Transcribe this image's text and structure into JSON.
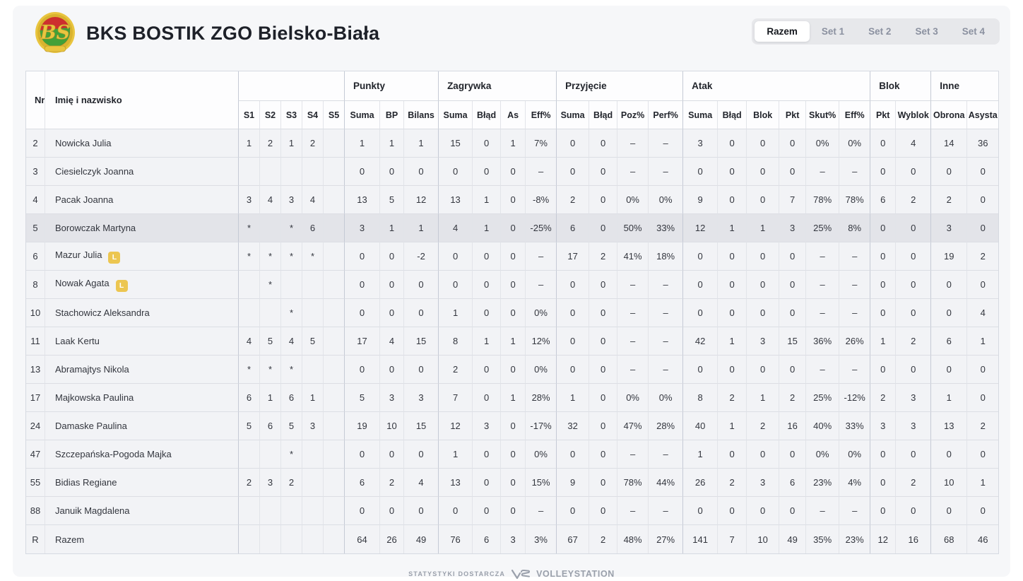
{
  "header": {
    "team_name": "BKS BOSTIK ZGO Bielsko-Biała"
  },
  "tabs": [
    {
      "label": "Razem",
      "active": true
    },
    {
      "label": "Set 1",
      "active": false
    },
    {
      "label": "Set 2",
      "active": false
    },
    {
      "label": "Set 3",
      "active": false
    },
    {
      "label": "Set 4",
      "active": false
    }
  ],
  "libero_badge": "L",
  "colors": {
    "badge_libero": "#ecc651",
    "crest_red": "#cd2f2e",
    "crest_green": "#42a038",
    "crest_gold": "#e9c53f",
    "highlight_row": "#e3e4e9"
  },
  "table": {
    "corner_headers": [
      "Nr",
      "Imię i nazwisko"
    ],
    "set_columns": [
      "S1",
      "S2",
      "S3",
      "S4",
      "S5"
    ],
    "groups": [
      {
        "label": "Punkty",
        "columns": [
          "Suma",
          "BP",
          "Bilans"
        ]
      },
      {
        "label": "Zagrywka",
        "columns": [
          "Suma",
          "Błąd",
          "As",
          "Eff%"
        ]
      },
      {
        "label": "Przyjęcie",
        "columns": [
          "Suma",
          "Błąd",
          "Poz%",
          "Perf%"
        ]
      },
      {
        "label": "Atak",
        "columns": [
          "Suma",
          "Błąd",
          "Blok",
          "Pkt",
          "Skut%",
          "Eff%"
        ]
      },
      {
        "label": "Blok",
        "columns": [
          "Pkt",
          "Wyblok"
        ]
      },
      {
        "label": "Inne",
        "columns": [
          "Obrona",
          "Asysta"
        ]
      }
    ],
    "rows": [
      {
        "nr": "2",
        "name": "Nowicka Julia",
        "libero": false,
        "highlight": false,
        "sets": [
          "1",
          "2",
          "1",
          "2",
          ""
        ],
        "values": [
          "1",
          "1",
          "1",
          "15",
          "0",
          "1",
          "7%",
          "0",
          "0",
          "–",
          "–",
          "3",
          "0",
          "0",
          "0",
          "0%",
          "0%",
          "0",
          "4",
          "14",
          "36"
        ]
      },
      {
        "nr": "3",
        "name": "Ciesielczyk Joanna",
        "libero": false,
        "highlight": false,
        "sets": [
          "",
          "",
          "",
          "",
          ""
        ],
        "values": [
          "0",
          "0",
          "0",
          "0",
          "0",
          "0",
          "–",
          "0",
          "0",
          "–",
          "–",
          "0",
          "0",
          "0",
          "0",
          "–",
          "–",
          "0",
          "0",
          "0",
          "0"
        ]
      },
      {
        "nr": "4",
        "name": "Pacak Joanna",
        "libero": false,
        "highlight": false,
        "sets": [
          "3",
          "4",
          "3",
          "4",
          ""
        ],
        "values": [
          "13",
          "5",
          "12",
          "13",
          "1",
          "0",
          "-8%",
          "2",
          "0",
          "0%",
          "0%",
          "9",
          "0",
          "0",
          "7",
          "78%",
          "78%",
          "6",
          "2",
          "2",
          "0"
        ]
      },
      {
        "nr": "5",
        "name": "Borowczak Martyna",
        "libero": false,
        "highlight": true,
        "sets": [
          "*",
          "",
          "*",
          "6",
          ""
        ],
        "values": [
          "3",
          "1",
          "1",
          "4",
          "1",
          "0",
          "-25%",
          "6",
          "0",
          "50%",
          "33%",
          "12",
          "1",
          "1",
          "3",
          "25%",
          "8%",
          "0",
          "0",
          "3",
          "0"
        ]
      },
      {
        "nr": "6",
        "name": "Mazur Julia",
        "libero": true,
        "highlight": false,
        "sets": [
          "*",
          "*",
          "*",
          "*",
          ""
        ],
        "values": [
          "0",
          "0",
          "-2",
          "0",
          "0",
          "0",
          "–",
          "17",
          "2",
          "41%",
          "18%",
          "0",
          "0",
          "0",
          "0",
          "–",
          "–",
          "0",
          "0",
          "19",
          "2"
        ]
      },
      {
        "nr": "8",
        "name": "Nowak Agata",
        "libero": true,
        "highlight": false,
        "sets": [
          "",
          "*",
          "",
          "",
          ""
        ],
        "values": [
          "0",
          "0",
          "0",
          "0",
          "0",
          "0",
          "–",
          "0",
          "0",
          "–",
          "–",
          "0",
          "0",
          "0",
          "0",
          "–",
          "–",
          "0",
          "0",
          "0",
          "0"
        ]
      },
      {
        "nr": "10",
        "name": "Stachowicz Aleksandra",
        "libero": false,
        "highlight": false,
        "sets": [
          "",
          "",
          "*",
          "",
          ""
        ],
        "values": [
          "0",
          "0",
          "0",
          "1",
          "0",
          "0",
          "0%",
          "0",
          "0",
          "–",
          "–",
          "0",
          "0",
          "0",
          "0",
          "–",
          "–",
          "0",
          "0",
          "0",
          "4"
        ]
      },
      {
        "nr": "11",
        "name": "Laak Kertu",
        "libero": false,
        "highlight": false,
        "sets": [
          "4",
          "5",
          "4",
          "5",
          ""
        ],
        "values": [
          "17",
          "4",
          "15",
          "8",
          "1",
          "1",
          "12%",
          "0",
          "0",
          "–",
          "–",
          "42",
          "1",
          "3",
          "15",
          "36%",
          "26%",
          "1",
          "2",
          "6",
          "1"
        ]
      },
      {
        "nr": "13",
        "name": "Abramajtys Nikola",
        "libero": false,
        "highlight": false,
        "sets": [
          "*",
          "*",
          "*",
          "",
          ""
        ],
        "values": [
          "0",
          "0",
          "0",
          "2",
          "0",
          "0",
          "0%",
          "0",
          "0",
          "–",
          "–",
          "0",
          "0",
          "0",
          "0",
          "–",
          "–",
          "0",
          "0",
          "0",
          "0"
        ]
      },
      {
        "nr": "17",
        "name": "Majkowska Paulina",
        "libero": false,
        "highlight": false,
        "sets": [
          "6",
          "1",
          "6",
          "1",
          ""
        ],
        "values": [
          "5",
          "3",
          "3",
          "7",
          "0",
          "1",
          "28%",
          "1",
          "0",
          "0%",
          "0%",
          "8",
          "2",
          "1",
          "2",
          "25%",
          "-12%",
          "2",
          "3",
          "1",
          "0"
        ]
      },
      {
        "nr": "24",
        "name": "Damaske Paulina",
        "libero": false,
        "highlight": false,
        "sets": [
          "5",
          "6",
          "5",
          "3",
          ""
        ],
        "values": [
          "19",
          "10",
          "15",
          "12",
          "3",
          "0",
          "-17%",
          "32",
          "0",
          "47%",
          "28%",
          "40",
          "1",
          "2",
          "16",
          "40%",
          "33%",
          "3",
          "3",
          "13",
          "2"
        ]
      },
      {
        "nr": "47",
        "name": "Szczepańska-Pogoda Majka",
        "libero": false,
        "highlight": false,
        "sets": [
          "",
          "",
          "*",
          "",
          ""
        ],
        "values": [
          "0",
          "0",
          "0",
          "1",
          "0",
          "0",
          "0%",
          "0",
          "0",
          "–",
          "–",
          "1",
          "0",
          "0",
          "0",
          "0%",
          "0%",
          "0",
          "0",
          "0",
          "0"
        ]
      },
      {
        "nr": "55",
        "name": "Bidias Regiane",
        "libero": false,
        "highlight": false,
        "sets": [
          "2",
          "3",
          "2",
          "",
          ""
        ],
        "values": [
          "6",
          "2",
          "4",
          "13",
          "0",
          "0",
          "15%",
          "9",
          "0",
          "78%",
          "44%",
          "26",
          "2",
          "3",
          "6",
          "23%",
          "4%",
          "0",
          "2",
          "10",
          "1"
        ]
      },
      {
        "nr": "88",
        "name": "Januik Magdalena",
        "libero": false,
        "highlight": false,
        "sets": [
          "",
          "",
          "",
          "",
          ""
        ],
        "values": [
          "0",
          "0",
          "0",
          "0",
          "0",
          "0",
          "–",
          "0",
          "0",
          "–",
          "–",
          "0",
          "0",
          "0",
          "0",
          "–",
          "–",
          "0",
          "0",
          "0",
          "0"
        ]
      },
      {
        "nr": "R",
        "name": "Razem",
        "libero": false,
        "highlight": false,
        "sets": [
          "",
          "",
          "",
          "",
          ""
        ],
        "values": [
          "64",
          "26",
          "49",
          "76",
          "6",
          "3",
          "3%",
          "67",
          "2",
          "48%",
          "27%",
          "141",
          "7",
          "10",
          "49",
          "35%",
          "23%",
          "12",
          "16",
          "68",
          "46"
        ]
      }
    ]
  },
  "footer": {
    "provider_label": "STATYSTYKI DOSTARCZA",
    "brand": "VOLLEYSTATION"
  }
}
